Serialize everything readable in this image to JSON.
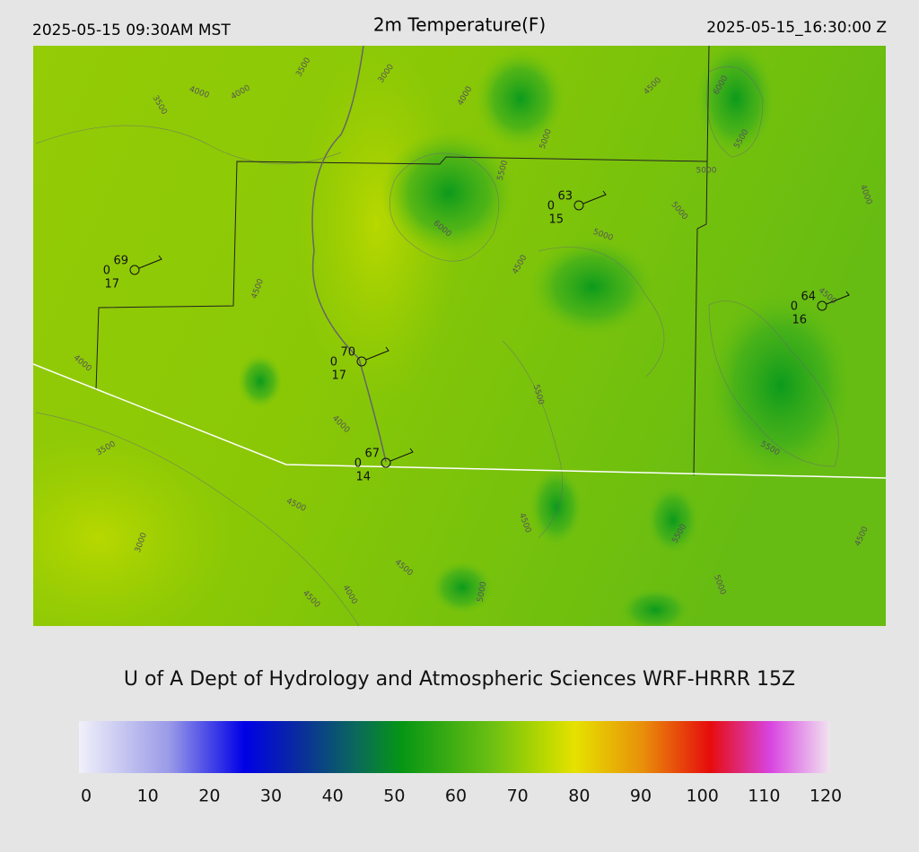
{
  "header": {
    "left": "2025-05-15 09:30AM MST",
    "title": "2m Temperature(F)",
    "right": "2025-05-15_16:30:00 Z"
  },
  "stations": [
    {
      "temp": "69",
      "left": "0",
      "bottom": "17"
    },
    {
      "temp": "63",
      "left": "0",
      "bottom": "15"
    },
    {
      "temp": "64",
      "left": "0",
      "bottom": "16"
    },
    {
      "temp": "70",
      "left": "0",
      "bottom": "17"
    },
    {
      "temp": "67",
      "left": "0",
      "bottom": "14"
    }
  ],
  "contour_labels": [
    "3500",
    "3000",
    "4000",
    "4000",
    "3500",
    "4000",
    "4500",
    "6000",
    "5000",
    "5500",
    "5000",
    "4000",
    "5500",
    "6000",
    "5000",
    "5000",
    "4500",
    "4500",
    "4500",
    "4000",
    "5500",
    "4000",
    "3500",
    "5500",
    "4500",
    "4500",
    "3000",
    "5500",
    "4500",
    "4500",
    "5000",
    "4000",
    "4500",
    "5000"
  ],
  "credit": "U of A Dept of Hydrology and Atmospheric Sciences WRF-HRRR 15Z",
  "colorbar": {
    "ticks": [
      0,
      10,
      20,
      30,
      40,
      50,
      60,
      70,
      80,
      90,
      100,
      110,
      120
    ]
  }
}
